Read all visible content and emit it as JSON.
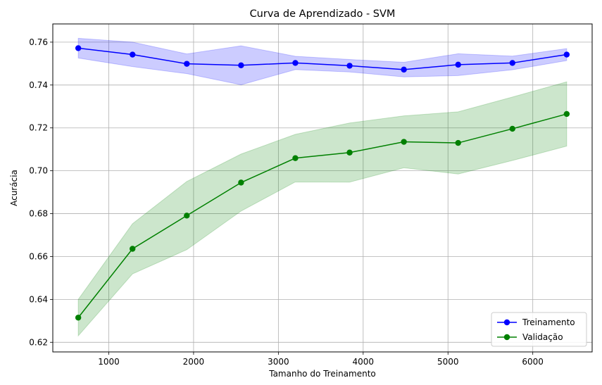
{
  "chart_data": {
    "type": "line",
    "title": "Curva de Aprendizado - SVM",
    "xlabel": "Tamanho do Treinamento",
    "ylabel": "Acurácia",
    "xlim": [
      340,
      6700
    ],
    "ylim": [
      0.6155,
      0.7685
    ],
    "xticks": [
      1000,
      2000,
      3000,
      4000,
      5000,
      6000
    ],
    "xtick_labels": [
      "1000",
      "2000",
      "3000",
      "4000",
      "5000",
      "6000"
    ],
    "yticks": [
      0.62,
      0.64,
      0.66,
      0.68,
      0.7,
      0.72,
      0.74,
      0.76
    ],
    "ytick_labels": [
      "0.62",
      "0.64",
      "0.66",
      "0.68",
      "0.70",
      "0.72",
      "0.74",
      "0.76"
    ],
    "grid": true,
    "legend_position": "bottom-right",
    "x": [
      640,
      1280,
      1920,
      2560,
      3200,
      3840,
      4480,
      5120,
      5760,
      6400
    ],
    "series": [
      {
        "name": "Treinamento",
        "color": "#0000ff",
        "band_color": "#0000ff",
        "values": [
          0.7572,
          0.7542,
          0.7499,
          0.7492,
          0.7503,
          0.749,
          0.7472,
          0.7495,
          0.7503,
          0.7542
        ],
        "upper": [
          0.7618,
          0.76,
          0.7545,
          0.7583,
          0.7534,
          0.7519,
          0.7506,
          0.7546,
          0.7535,
          0.757
        ],
        "lower": [
          0.7526,
          0.7486,
          0.7453,
          0.7401,
          0.7472,
          0.7461,
          0.7438,
          0.7444,
          0.7471,
          0.7514
        ]
      },
      {
        "name": "Validação",
        "color": "#008000",
        "band_color": "#008000",
        "values": [
          0.6315,
          0.6636,
          0.6791,
          0.6945,
          0.7059,
          0.7085,
          0.7135,
          0.713,
          0.7196,
          0.7265
        ],
        "upper": [
          0.64,
          0.6753,
          0.695,
          0.7078,
          0.717,
          0.7223,
          0.7256,
          0.7275,
          0.7344,
          0.7415
        ],
        "lower": [
          0.623,
          0.6519,
          0.6632,
          0.6812,
          0.6948,
          0.6947,
          0.7014,
          0.6985,
          0.7048,
          0.7115
        ]
      }
    ]
  }
}
